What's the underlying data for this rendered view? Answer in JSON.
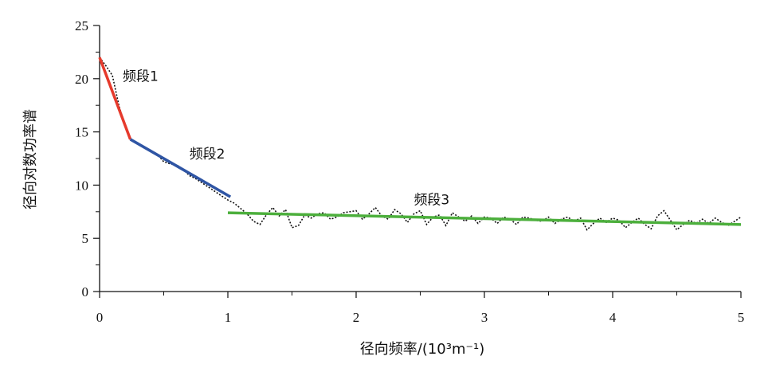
{
  "chart_data": {
    "type": "line",
    "xlabel": "径向频率/(10³m⁻¹)",
    "ylabel": "径向对数功率谱",
    "xlim": [
      0,
      5
    ],
    "ylim": [
      0,
      25
    ],
    "xticks": [
      "0",
      "1",
      "2",
      "3",
      "4",
      "5"
    ],
    "yticks": [
      "0",
      "5",
      "10",
      "15",
      "20",
      "25"
    ],
    "grid": false,
    "measured": {
      "x": [
        0.0,
        0.05,
        0.1,
        0.15,
        0.2,
        0.25,
        0.3,
        0.35,
        0.4,
        0.45,
        0.5,
        0.55,
        0.6,
        0.65,
        0.7,
        0.75,
        0.8,
        0.85,
        0.9,
        0.95,
        1.0,
        1.05,
        1.1,
        1.15,
        1.2,
        1.25,
        1.3,
        1.35,
        1.4,
        1.45,
        1.5,
        1.55,
        1.6,
        1.65,
        1.7,
        1.75,
        1.8,
        1.85,
        1.9,
        1.95,
        2.0,
        2.05,
        2.1,
        2.15,
        2.2,
        2.25,
        2.3,
        2.35,
        2.4,
        2.45,
        2.5,
        2.55,
        2.6,
        2.65,
        2.7,
        2.75,
        2.8,
        2.85,
        2.9,
        2.95,
        3.0,
        3.05,
        3.1,
        3.15,
        3.2,
        3.25,
        3.3,
        3.35,
        3.4,
        3.45,
        3.5,
        3.55,
        3.6,
        3.65,
        3.7,
        3.75,
        3.8,
        3.85,
        3.9,
        3.95,
        4.0,
        4.05,
        4.1,
        4.15,
        4.2,
        4.25,
        4.3,
        4.35,
        4.4,
        4.45,
        4.5,
        4.55,
        4.6,
        4.65,
        4.7,
        4.75,
        4.8,
        4.85,
        4.9,
        4.95,
        5.0
      ],
      "y": [
        22.0,
        21.2,
        20.3,
        17.5,
        15.5,
        14.2,
        13.9,
        13.6,
        13.2,
        12.9,
        12.2,
        12.0,
        11.9,
        11.5,
        10.9,
        10.6,
        10.2,
        9.8,
        9.4,
        9.0,
        8.6,
        8.3,
        7.8,
        7.3,
        6.6,
        6.3,
        7.2,
        7.9,
        7.1,
        7.7,
        6.0,
        6.2,
        7.2,
        6.9,
        7.3,
        7.4,
        6.8,
        7.0,
        7.4,
        7.5,
        7.6,
        6.8,
        7.3,
        7.9,
        7.1,
        6.8,
        7.7,
        7.3,
        6.5,
        7.3,
        7.6,
        6.3,
        7.0,
        7.2,
        6.2,
        7.4,
        7.0,
        6.6,
        7.1,
        6.4,
        7.0,
        6.9,
        6.4,
        7.0,
        6.8,
        6.3,
        7.0,
        6.9,
        6.7,
        6.6,
        7.0,
        6.4,
        6.8,
        7.0,
        6.6,
        6.9,
        5.8,
        6.4,
        6.9,
        6.5,
        6.9,
        6.7,
        6.0,
        6.5,
        6.9,
        6.3,
        5.9,
        7.1,
        7.6,
        6.7,
        5.8,
        6.3,
        6.7,
        6.4,
        6.8,
        6.4,
        6.9,
        6.5,
        6.2,
        6.6,
        7.0
      ]
    },
    "fits": [
      {
        "name": "频段1",
        "color": "#e63a2c",
        "x": [
          0.0,
          0.24
        ],
        "y": [
          22.0,
          14.3
        ]
      },
      {
        "name": "频段2",
        "color": "#2f55a4",
        "x": [
          0.24,
          1.02
        ],
        "y": [
          14.3,
          8.9
        ]
      },
      {
        "name": "频段3",
        "color": "#4caf3c",
        "x": [
          1.0,
          5.0
        ],
        "y": [
          7.4,
          6.3
        ]
      }
    ],
    "annotations": [
      {
        "text": "频段1",
        "x": 0.18,
        "y": 19.8
      },
      {
        "text": "频段2",
        "x": 0.7,
        "y": 12.5
      },
      {
        "text": "频段3",
        "x": 2.45,
        "y": 8.2
      }
    ]
  }
}
